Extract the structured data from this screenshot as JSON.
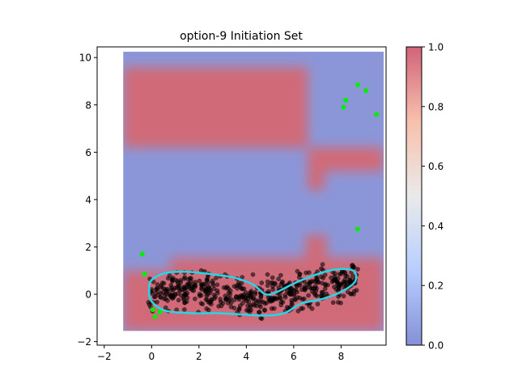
{
  "chart_data": {
    "type": "heatmap",
    "title": "option-9 Initiation Set",
    "xlabel": "",
    "ylabel": "",
    "xlim": [
      -2.3,
      9.9
    ],
    "ylim": [
      -2.15,
      10.45
    ],
    "x_ticks": [
      "−2",
      "0",
      "2",
      "4",
      "6",
      "8"
    ],
    "y_ticks": [
      "−2",
      "0",
      "2",
      "4",
      "6",
      "8",
      "10"
    ],
    "colorbar": {
      "range": [
        0.0,
        1.0
      ],
      "ticks": [
        "0.0",
        "0.2",
        "0.4",
        "0.6",
        "0.8",
        "1.0"
      ],
      "colormap": "coolwarm"
    },
    "heatmap_extent": {
      "x": [
        -1.2,
        9.8
      ],
      "y": [
        -1.55,
        10.25
      ]
    },
    "regions_high": [
      {
        "x": [
          -1.2,
          6.6
        ],
        "y": [
          6.2,
          9.6
        ]
      },
      {
        "x": [
          6.6,
          9.8
        ],
        "y": [
          5.2,
          6.2
        ]
      },
      {
        "x": [
          6.6,
          7.3
        ],
        "y": [
          4.4,
          6.2
        ]
      },
      {
        "x": [
          -1.2,
          9.8
        ],
        "y": [
          -1.55,
          1.0
        ]
      },
      {
        "x": [
          0.8,
          9.8
        ],
        "y": [
          1.0,
          1.55
        ]
      },
      {
        "x": [
          6.5,
          7.4
        ],
        "y": [
          1.0,
          2.5
        ]
      }
    ],
    "trajectory_count": 520,
    "goal_points": [
      {
        "x": -0.4,
        "y": 1.7
      },
      {
        "x": -0.3,
        "y": 0.85
      },
      {
        "x": 0.05,
        "y": -0.65
      },
      {
        "x": 0.15,
        "y": -0.95
      },
      {
        "x": 0.35,
        "y": -0.75
      },
      {
        "x": 8.1,
        "y": 7.9
      },
      {
        "x": 8.2,
        "y": 8.2
      },
      {
        "x": 8.7,
        "y": 8.85
      },
      {
        "x": 9.05,
        "y": 8.6
      },
      {
        "x": 9.5,
        "y": 7.6
      },
      {
        "x": 8.7,
        "y": 2.75
      }
    ],
    "boundary_contour": [
      {
        "x": 0.0,
        "y": 0.6
      },
      {
        "x": 0.6,
        "y": 0.9
      },
      {
        "x": 1.5,
        "y": 0.95
      },
      {
        "x": 2.5,
        "y": 0.85
      },
      {
        "x": 3.5,
        "y": 0.7
      },
      {
        "x": 4.3,
        "y": 0.4
      },
      {
        "x": 4.8,
        "y": 0.0
      },
      {
        "x": 5.3,
        "y": 0.1
      },
      {
        "x": 6.0,
        "y": 0.45
      },
      {
        "x": 7.0,
        "y": 0.85
      },
      {
        "x": 7.8,
        "y": 1.05
      },
      {
        "x": 8.5,
        "y": 1.0
      },
      {
        "x": 8.6,
        "y": 0.55
      },
      {
        "x": 8.0,
        "y": 0.1
      },
      {
        "x": 7.2,
        "y": -0.2
      },
      {
        "x": 6.3,
        "y": -0.4
      },
      {
        "x": 5.6,
        "y": -0.8
      },
      {
        "x": 4.8,
        "y": -0.9
      },
      {
        "x": 3.8,
        "y": -0.85
      },
      {
        "x": 2.8,
        "y": -0.8
      },
      {
        "x": 1.8,
        "y": -0.8
      },
      {
        "x": 0.6,
        "y": -0.7
      },
      {
        "x": 0.0,
        "y": -0.3
      },
      {
        "x": -0.1,
        "y": 0.2
      }
    ],
    "colors": {
      "low": "#8b96d8",
      "high": "#d06a78",
      "contour": "#22d8e8",
      "goal": "#00ee00",
      "trajectory": "#000000"
    }
  }
}
